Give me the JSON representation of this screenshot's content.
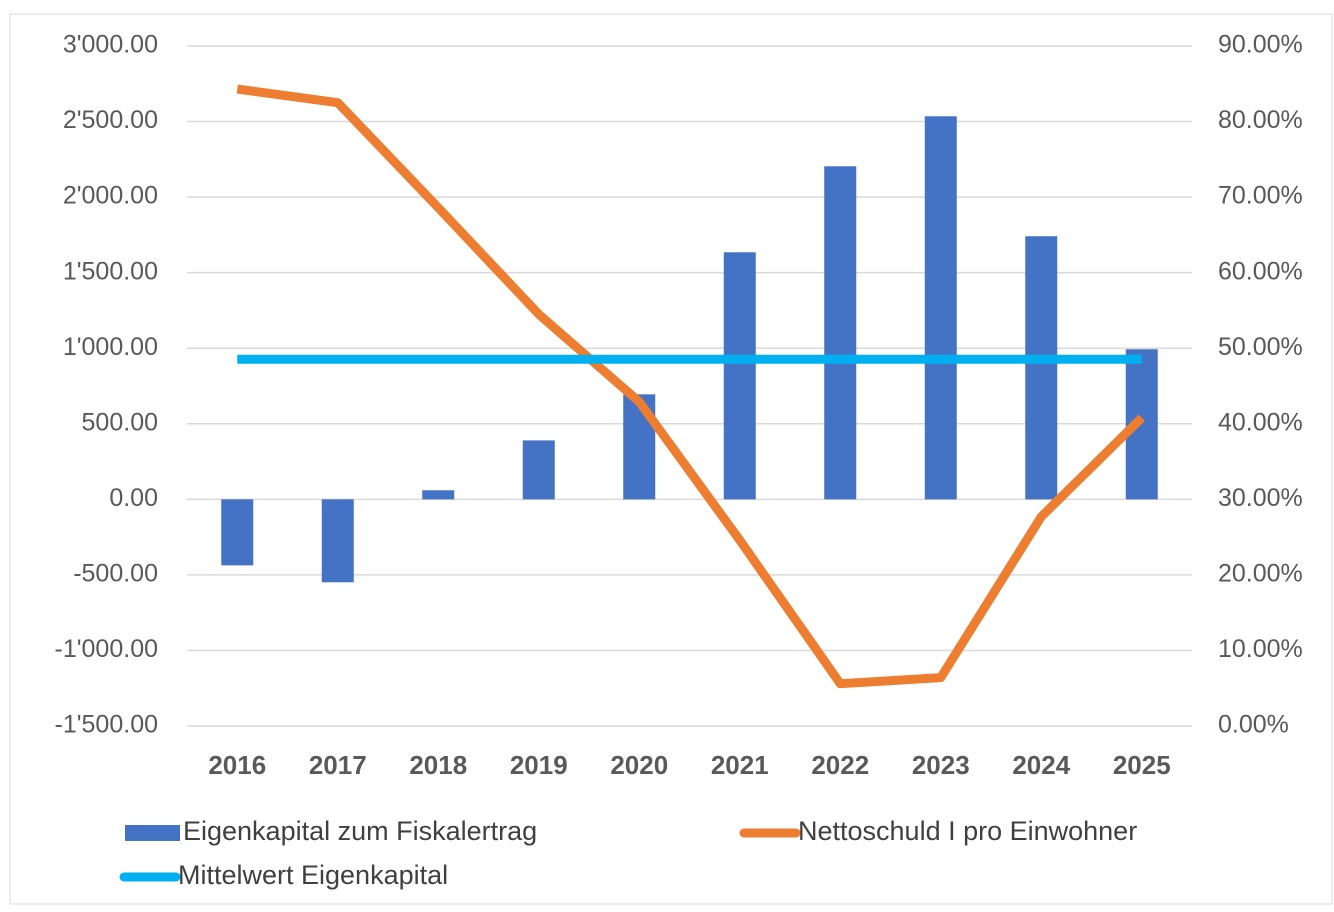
{
  "chart_data": {
    "type": "bar",
    "categories": [
      "2016",
      "2017",
      "2018",
      "2019",
      "2020",
      "2021",
      "2022",
      "2023",
      "2024",
      "2025"
    ],
    "series": [
      {
        "name": "Eigenkapital zum Fiskalertrag",
        "type": "bar",
        "color": "#4472c4",
        "values": [
          -437,
          -549,
          60,
          390,
          695,
          1635,
          2204,
          2535,
          1741,
          993
        ]
      },
      {
        "name": "Nettoschuld I pro Einwohner",
        "type": "line",
        "axis": "y2",
        "color": "#ed7d31",
        "values": [
          84.3,
          82.5,
          68.6,
          54.5,
          42.9,
          24.6,
          5.6,
          6.4,
          27.7,
          40.8
        ]
      },
      {
        "name": "Mittelwert Eigenkapital",
        "type": "line",
        "color": "#00b0f0",
        "values": [
          927,
          927,
          927,
          927,
          927,
          927,
          927,
          927,
          927,
          927
        ]
      }
    ],
    "ylim": [
      -1500,
      3000
    ],
    "yticks": [
      {
        "value": -1500,
        "label": "-1'500.00"
      },
      {
        "value": -1000,
        "label": "-1'000.00"
      },
      {
        "value": -500,
        "label": "-500.00"
      },
      {
        "value": 0,
        "label": "0.00"
      },
      {
        "value": 500,
        "label": "500.00"
      },
      {
        "value": 1000,
        "label": "1'000.00"
      },
      {
        "value": 1500,
        "label": "1'500.00"
      },
      {
        "value": 2000,
        "label": "2'000.00"
      },
      {
        "value": 2500,
        "label": "2'500.00"
      },
      {
        "value": 3000,
        "label": "3'000.00"
      }
    ],
    "y2lim": [
      0,
      90
    ],
    "y2ticks": [
      {
        "value": 0,
        "label": "0.00%"
      },
      {
        "value": 10,
        "label": "10.00%"
      },
      {
        "value": 20,
        "label": "20.00%"
      },
      {
        "value": 30,
        "label": "30.00%"
      },
      {
        "value": 40,
        "label": "40.00%"
      },
      {
        "value": 50,
        "label": "50.00%"
      },
      {
        "value": 60,
        "label": "60.00%"
      },
      {
        "value": 70,
        "label": "70.00%"
      },
      {
        "value": 80,
        "label": "80.00%"
      },
      {
        "value": 90,
        "label": "90.00%"
      }
    ],
    "grid": true,
    "legend": "bottom"
  }
}
